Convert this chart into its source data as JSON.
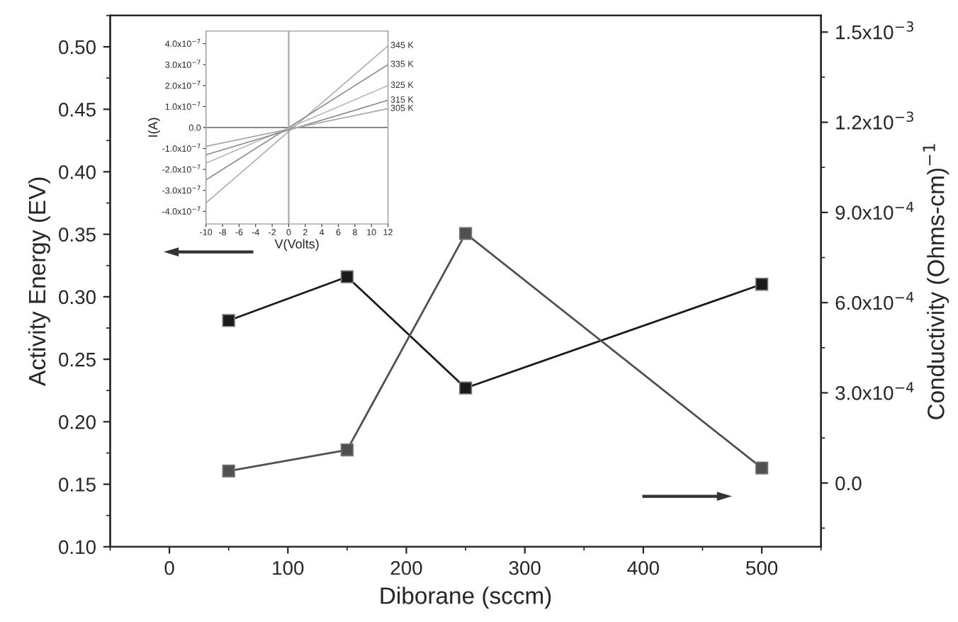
{
  "chart_data": [
    {
      "type": "line",
      "xlabel": "Diborane (sccm)",
      "ylabel": "Activity Energy (EV)",
      "y2label": "Conductivity (Ohms-cm)$^{−1}$",
      "x": [
        50,
        150,
        250,
        500
      ],
      "series": [
        {
          "color": "#1a1a1a",
          "values": [
            0.281,
            0.316,
            0.227,
            0.31
          ]
        },
        {
          "color": "#505050",
          "axis": "y2",
          "values": [
            4e-05,
            0.00011,
            0.00083,
            5e-05
          ]
        }
      ],
      "xlim": [
        -50,
        550
      ],
      "xticks": [
        0,
        100,
        200,
        300,
        400,
        500
      ],
      "ylim": [
        0.1,
        0.525
      ],
      "yticks": [
        {
          "value": 0.1,
          "label": "0.10"
        },
        {
          "value": 0.15,
          "label": "0.15"
        },
        {
          "value": 0.2,
          "label": "0.20"
        },
        {
          "value": 0.25,
          "label": "0.25"
        },
        {
          "value": 0.3,
          "label": "0.30"
        },
        {
          "value": 0.35,
          "label": "0.35"
        },
        {
          "value": 0.4,
          "label": "0.40"
        },
        {
          "value": 0.45,
          "label": "0.45"
        },
        {
          "value": 0.5,
          "label": "0.50"
        }
      ],
      "y2lim": [
        -0.000212,
        0.001555
      ],
      "y2ticks": [
        {
          "value": 0,
          "label": "0.0"
        },
        {
          "value": 0.0003,
          "label": "3.0x10$^{−4}$"
        },
        {
          "value": 0.0006,
          "label": "6.0x10$^{−4}$"
        },
        {
          "value": 0.0009,
          "label": "9.0x10$^{−4}$"
        },
        {
          "value": 0.0012,
          "label": "1.2x10$^{−3}$"
        },
        {
          "value": 0.0015,
          "label": "1.5x10$^{−3}$"
        }
      ],
      "marker": "square",
      "line_style": "solid",
      "grid": false,
      "legend": false
    },
    {
      "type": "line",
      "xlabel": "V(Volts)",
      "ylabel": "I(A)",
      "x": [
        -10,
        12
      ],
      "series": [
        {
          "name": "345 K",
          "color": "#b0b0b0",
          "values": [
            -3.6e-07,
            3.9e-07
          ]
        },
        {
          "name": "335 K",
          "color": "#909090",
          "values": [
            -2.5e-07,
            3e-07
          ]
        },
        {
          "name": "325 K",
          "color": "#b8b8b8",
          "values": [
            -1.7e-07,
            2e-07
          ]
        },
        {
          "name": "315 K",
          "color": "#888888",
          "values": [
            -1.3e-07,
            1.3e-07
          ]
        },
        {
          "name": "305 K",
          "color": "#a8a8a8",
          "values": [
            -9e-08,
            9e-08
          ]
        }
      ],
      "xlim": [
        -10,
        12
      ],
      "xticks": [
        -10,
        -8,
        -6,
        -4,
        -2,
        0,
        2,
        4,
        6,
        8,
        10,
        12
      ],
      "ylim": [
        -4.6e-07,
        4.6e-07
      ],
      "yticks": [
        {
          "value": -4e-07,
          "label": "-4.0x10$^{−7}$"
        },
        {
          "value": -3e-07,
          "label": "-3.0x10$^{−7}$"
        },
        {
          "value": -2e-07,
          "label": "-2.0x10$^{−7}$"
        },
        {
          "value": -1e-07,
          "label": "-1.0x10$^{−7}$"
        },
        {
          "value": 0,
          "label": "0.0"
        },
        {
          "value": 1e-07,
          "label": "1.0x10$^{−7}$"
        },
        {
          "value": 2e-07,
          "label": "2.0x10$^{−7}$"
        },
        {
          "value": 3e-07,
          "label": "3.0x10$^{−7}$"
        },
        {
          "value": 4e-07,
          "label": "4.0x10$^{−7}$"
        }
      ],
      "ref_lines": [
        {
          "axis": "x",
          "value": 0,
          "color": "#aaaaaa"
        },
        {
          "axis": "y",
          "value": 0,
          "color": "#888888"
        }
      ],
      "marker": "none",
      "line_style": "solid",
      "grid": false,
      "legend": false
    }
  ]
}
